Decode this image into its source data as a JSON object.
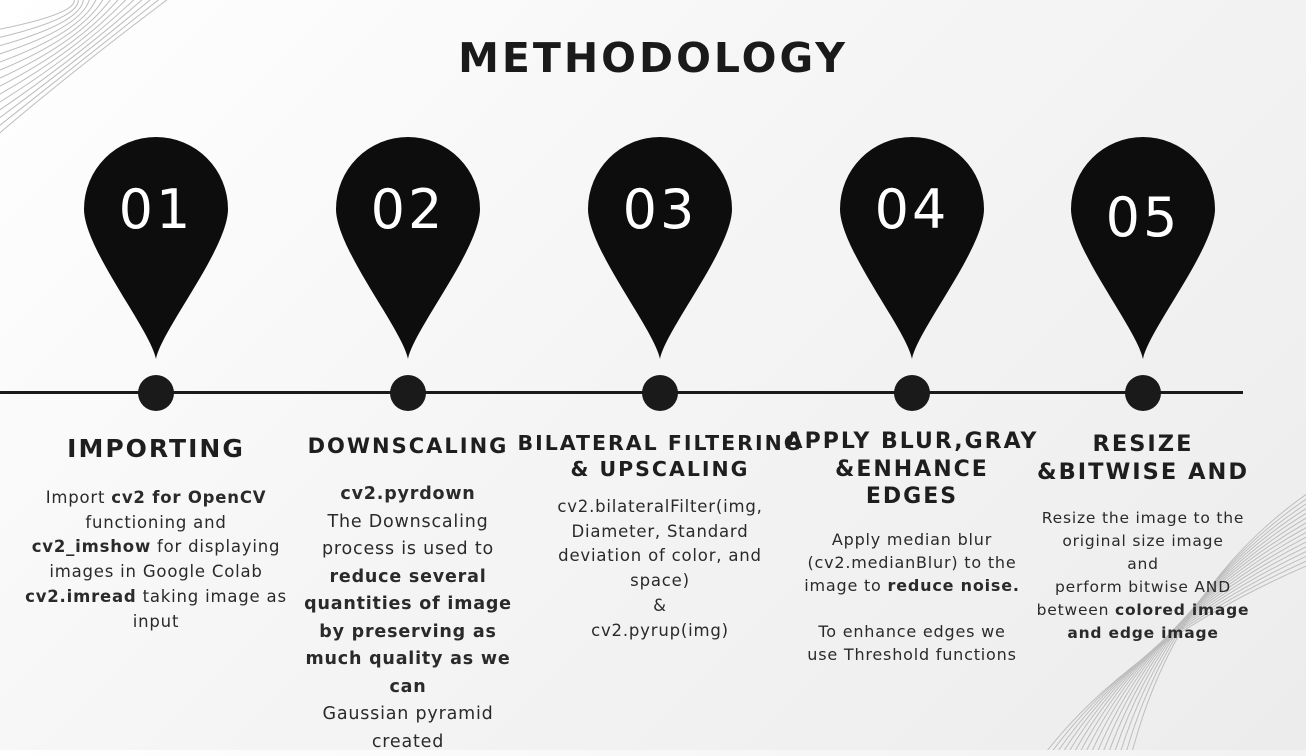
{
  "title": "METHODOLOGY",
  "steps": [
    {
      "number": "01",
      "title_lines": [
        "IMPORTING"
      ],
      "desc": [
        [
          {
            "t": "Import "
          },
          {
            "t": "cv2 for OpenCV",
            "b": true
          }
        ],
        [
          {
            "t": "functioning and"
          }
        ],
        [
          {
            "t": "cv2_imshow",
            "b": true
          },
          {
            "t": " for displaying"
          }
        ],
        [
          {
            "t": "images in Google Colab"
          }
        ],
        [
          {
            "t": "cv2.imread",
            "b": true
          },
          {
            "t": " taking image as"
          }
        ],
        [
          {
            "t": "input"
          }
        ]
      ]
    },
    {
      "number": "02",
      "title_lines": [
        "DOWNSCALING"
      ],
      "desc": [
        [
          {
            "t": "cv2.pyrdown",
            "b": true
          }
        ],
        [
          {
            "t": "The Downscaling"
          }
        ],
        [
          {
            "t": "process is used to"
          }
        ],
        [
          {
            "t": "reduce several",
            "b": true
          }
        ],
        [
          {
            "t": "quantities of image",
            "b": true
          }
        ],
        [
          {
            "t": "by preserving as",
            "b": true
          }
        ],
        [
          {
            "t": "much quality as we",
            "b": true
          }
        ],
        [
          {
            "t": "can",
            "b": true
          }
        ],
        [
          {
            "t": "Gaussian pyramid"
          }
        ],
        [
          {
            "t": "created"
          }
        ]
      ]
    },
    {
      "number": "03",
      "title_lines": [
        "BILATERAL FILTERING",
        "& UPSCALING"
      ],
      "desc": [
        [
          {
            "t": "cv2.bilateralFilter(img,"
          }
        ],
        [
          {
            "t": "Diameter, Standard"
          }
        ],
        [
          {
            "t": "deviation of color, and"
          }
        ],
        [
          {
            "t": "space)"
          }
        ],
        [
          {
            "t": "&"
          }
        ],
        [
          {
            "t": "cv2.pyrup(img)"
          }
        ]
      ]
    },
    {
      "number": "04",
      "title_lines": [
        "APPLY BLUR,GRAY",
        "&ENHANCE",
        "EDGES"
      ],
      "desc": [
        [
          {
            "t": "Apply median blur"
          }
        ],
        [
          {
            "t": "(cv2.medianBlur) to the"
          }
        ],
        [
          {
            "t": "image to "
          },
          {
            "t": "reduce noise.",
            "b": true
          }
        ],
        [
          {
            "t": ""
          }
        ],
        [
          {
            "t": "To enhance edges we"
          }
        ],
        [
          {
            "t": "use Threshold functions"
          }
        ]
      ]
    },
    {
      "number": "05",
      "title_lines": [
        "RESIZE",
        "&BITWISE AND"
      ],
      "desc": [
        [
          {
            "t": "Resize the image to the"
          }
        ],
        [
          {
            "t": "original size image"
          }
        ],
        [
          {
            "t": "and"
          }
        ],
        [
          {
            "t": "perform bitwise AND"
          }
        ],
        [
          {
            "t": "between "
          },
          {
            "t": "colored image",
            "b": true
          }
        ],
        [
          {
            "t": "and edge image",
            "b": true
          }
        ]
      ]
    }
  ]
}
